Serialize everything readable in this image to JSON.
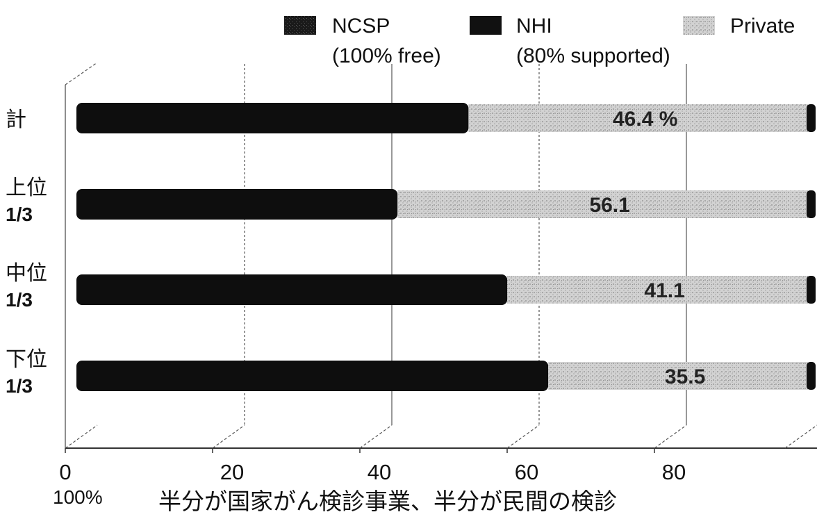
{
  "chart_data": {
    "type": "bar",
    "orientation": "horizontal",
    "stacked": true,
    "categories": [
      {
        "label_line1": "計",
        "label_line2": ""
      },
      {
        "label_line1": "上位",
        "label_line2": "1/3"
      },
      {
        "label_line1": "中位",
        "label_line2": "1/3"
      },
      {
        "label_line1": "下位",
        "label_line2": "1/3"
      }
    ],
    "series": [
      {
        "name_line1": "NCSP",
        "name_line2": "(100% free)",
        "color": "#0d0d0d",
        "values": [
          null,
          null,
          null,
          null
        ]
      },
      {
        "name_line1": "NHI",
        "name_line2": "(80% supported)",
        "color": "#111111",
        "values": [
          null,
          null,
          null,
          null
        ]
      },
      {
        "name_line1": "Private",
        "name_line2": "",
        "color": "#cfcfcf",
        "values": [
          46.4,
          56.1,
          41.1,
          35.5
        ]
      }
    ],
    "dark_total": [
      53.6,
      43.9,
      58.9,
      64.5
    ],
    "private_labels": [
      "46.4 %",
      "56.1",
      "41.1",
      "35.5"
    ],
    "xaxis": {
      "ticks": [
        "0",
        "20",
        "40",
        "60",
        "80"
      ],
      "unit_label": "100%"
    },
    "xlim": [
      0,
      100
    ],
    "legend_position": "top-right",
    "grid": true,
    "caption": "半分が国家がん検診事業、半分が民間の検診"
  }
}
